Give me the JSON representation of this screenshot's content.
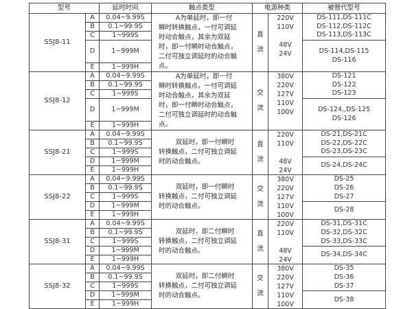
{
  "headers": [
    "型号",
    "延时时间",
    "触点类型",
    "电源种类",
    "被替代型号"
  ],
  "groups": [
    {
      "model": "SSJ8-11",
      "rows": [
        {
          "letter": "A",
          "delay": "0.04~9.99S"
        },
        {
          "letter": "B",
          "delay": "0.1~99.9S"
        },
        {
          "letter": "C",
          "delay": "1~999S"
        },
        {
          "letter": "D",
          "delay": "1~999M"
        },
        {
          "letter": "E",
          "delay": "1~999H"
        }
      ],
      "contact": "A为单延时，即一付瞬时转换触点，一付可调延时动合触点，其余为双延时，即一付瞬时动合触点，二付可独立调延时的动合触点。",
      "power": "直流",
      "voltages": [
        "220V",
        "110V",
        "48V",
        "24V"
      ],
      "replacement_top": [
        "DS-111,DS-111C",
        "DS-112,DS-112C",
        "DS-113,DS-113C"
      ],
      "replacement_bottom": [
        "DS-114,DS-115",
        "DS-116"
      ]
    },
    {
      "model": "SSJ8-12",
      "rows": [
        {
          "letter": "A",
          "delay": "0.04~9.99S"
        },
        {
          "letter": "B",
          "delay": "0.1~99.9S"
        },
        {
          "letter": "C",
          "delay": "1~999S"
        },
        {
          "letter": "D",
          "delay": "1~999M"
        },
        {
          "letter": "E",
          "delay": "1~999H"
        }
      ],
      "contact": "A为单延时，即一付瞬时转换触点，一付可调延时动合触点，其余为双延时，即一付瞬时动合触点，二付可独立调延时的动合触点。",
      "power": "交流",
      "voltages": [
        "380V",
        "220V",
        "127V",
        "110V",
        "100V"
      ],
      "replacement_top": [
        "DS-121",
        "DS-122",
        "DS-123"
      ],
      "replacement_bottom": [
        "DS-124,,DS-125",
        "DS-126"
      ]
    },
    {
      "model": "SSJ8-21",
      "rows": [
        {
          "letter": "A",
          "delay": "0.04~9.99S"
        },
        {
          "letter": "B",
          "delay": "0.1~99.9S"
        },
        {
          "letter": "C",
          "delay": "1~999S"
        },
        {
          "letter": "D",
          "delay": "1~999M"
        },
        {
          "letter": "E",
          "delay": "1~999H"
        }
      ],
      "contact": "双延时，即一付瞬时转换触点，二付可独立调延时的动合触点。",
      "power": "直流",
      "voltages": [
        "220V",
        "110V",
        "48V",
        "24V"
      ],
      "replacement_top": [
        "DS-21,DS-21C",
        "DS-22,DS-22C",
        "DS-23,DS-23C"
      ],
      "replacement_bottom": [
        "DS-24,DS-24C"
      ]
    },
    {
      "model": "SSJ8-22",
      "rows": [
        {
          "letter": "A",
          "delay": "0.04~9.99S"
        },
        {
          "letter": "B",
          "delay": "0.1~99.9S"
        },
        {
          "letter": "C",
          "delay": "1~999S"
        },
        {
          "letter": "D",
          "delay": "1~999M"
        },
        {
          "letter": "E",
          "delay": "1~999H"
        }
      ],
      "contact": "双延时，即一付瞬时转换触点，二付可独立调延时的动合触点。",
      "power": "交流",
      "voltages": [
        "380V",
        "220V",
        "127V",
        "110V",
        "100V"
      ],
      "replacement_top": [
        "DS-25",
        "DS-26",
        "DS-27"
      ],
      "replacement_bottom": [
        "DS-28"
      ]
    },
    {
      "model": "SSJ8-31",
      "rows": [
        {
          "letter": "A",
          "delay": "0.04~9.99S"
        },
        {
          "letter": "B",
          "delay": "0.1~99.9S"
        },
        {
          "letter": "C",
          "delay": "1~999S"
        },
        {
          "letter": "D",
          "delay": "1~999M"
        },
        {
          "letter": "E",
          "delay": "1~999H"
        }
      ],
      "contact": "双延时，即二付瞬时转换触点，二付可独立调延时的动合触点。",
      "power": "直流",
      "voltages": [
        "220V",
        "110V",
        "48V",
        "24V"
      ],
      "replacement_top": [
        "DS-31,DS-31C",
        "DS-32,DS-32C",
        "DS-33,DS-33C"
      ],
      "replacement_bottom": [
        "DS-34,DS-34C"
      ]
    },
    {
      "model": "SSJ8-32",
      "rows": [
        {
          "letter": "A",
          "delay": "0.04~9.99S"
        },
        {
          "letter": "B",
          "delay": "0.1~99.9S"
        },
        {
          "letter": "C",
          "delay": "1~999S"
        },
        {
          "letter": "D",
          "delay": "1~999M"
        },
        {
          "letter": "E",
          "delay": "1~999H"
        }
      ],
      "contact": "双延时，即二付瞬时转换触点，二付可独立调延时的动合触点。",
      "power": "交流",
      "voltages": [
        "380V",
        "220V",
        "127V",
        "110V",
        "100V"
      ],
      "replacement_top": [
        "DS-35",
        "DS-36",
        "DS-37"
      ],
      "replacement_bottom": [
        "DS-38"
      ]
    }
  ]
}
